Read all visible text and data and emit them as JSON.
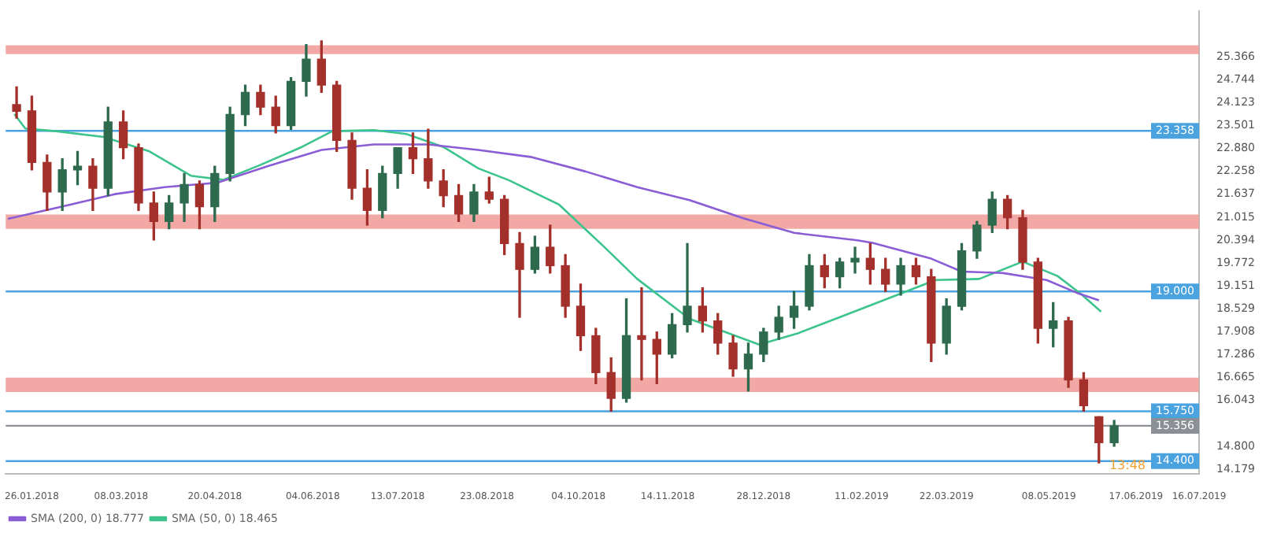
{
  "chart_data": {
    "type": "candlestick",
    "x": [
      "2018-01-19",
      "2018-01-26",
      "2018-02-02",
      "2018-02-09",
      "2018-02-16",
      "2018-02-23",
      "2018-03-02",
      "2018-03-09",
      "2018-03-16",
      "2018-03-23",
      "2018-03-30",
      "2018-04-06",
      "2018-04-13",
      "2018-04-20",
      "2018-04-27",
      "2018-05-04",
      "2018-05-11",
      "2018-05-18",
      "2018-05-25",
      "2018-06-01",
      "2018-06-08",
      "2018-06-15",
      "2018-06-22",
      "2018-06-29",
      "2018-07-06",
      "2018-07-13",
      "2018-07-20",
      "2018-07-27",
      "2018-08-03",
      "2018-08-10",
      "2018-08-17",
      "2018-08-24",
      "2018-08-31",
      "2018-09-07",
      "2018-09-14",
      "2018-09-21",
      "2018-09-28",
      "2018-10-05",
      "2018-10-12",
      "2018-10-19",
      "2018-10-26",
      "2018-11-02",
      "2018-11-09",
      "2018-11-16",
      "2018-11-23",
      "2018-11-30",
      "2018-12-07",
      "2018-12-14",
      "2018-12-21",
      "2018-12-28",
      "2019-01-04",
      "2019-01-11",
      "2019-01-18",
      "2019-01-25",
      "2019-02-01",
      "2019-02-08",
      "2019-02-15",
      "2019-02-22",
      "2019-03-01",
      "2019-03-08",
      "2019-03-15",
      "2019-03-22",
      "2019-03-29",
      "2019-04-05",
      "2019-04-12",
      "2019-04-19",
      "2019-04-26",
      "2019-05-03",
      "2019-05-10",
      "2019-05-17",
      "2019-05-24",
      "2019-05-31",
      "2019-06-07"
    ],
    "ohlc": [
      [
        24.07,
        24.55,
        23.7,
        23.89
      ],
      [
        23.9,
        24.3,
        22.3,
        22.5
      ],
      [
        22.5,
        22.7,
        21.2,
        21.7
      ],
      [
        21.7,
        22.6,
        21.2,
        22.3
      ],
      [
        22.3,
        22.8,
        21.9,
        22.4
      ],
      [
        22.4,
        22.6,
        21.2,
        21.8
      ],
      [
        21.8,
        24.0,
        21.6,
        23.6
      ],
      [
        23.6,
        23.9,
        22.6,
        22.9
      ],
      [
        22.9,
        23.0,
        21.2,
        21.4
      ],
      [
        21.4,
        21.7,
        20.4,
        20.9
      ],
      [
        20.9,
        21.6,
        20.7,
        21.4
      ],
      [
        21.4,
        22.2,
        20.9,
        21.9
      ],
      [
        21.9,
        22.0,
        20.7,
        21.3
      ],
      [
        21.3,
        22.4,
        20.9,
        22.2
      ],
      [
        22.2,
        24.0,
        22.0,
        23.8
      ],
      [
        23.8,
        24.6,
        23.5,
        24.4
      ],
      [
        24.4,
        24.6,
        23.8,
        24.0
      ],
      [
        24.0,
        24.3,
        23.3,
        23.5
      ],
      [
        23.5,
        24.8,
        23.4,
        24.7
      ],
      [
        24.7,
        25.7,
        24.3,
        25.3
      ],
      [
        25.3,
        25.8,
        24.4,
        24.6
      ],
      [
        24.6,
        24.7,
        22.8,
        23.1
      ],
      [
        23.1,
        23.3,
        21.5,
        21.8
      ],
      [
        21.8,
        22.3,
        20.8,
        21.2
      ],
      [
        21.2,
        22.4,
        21.0,
        22.2
      ],
      [
        22.2,
        22.9,
        21.8,
        22.9
      ],
      [
        22.9,
        23.3,
        22.2,
        22.6
      ],
      [
        22.6,
        23.4,
        21.8,
        22.0
      ],
      [
        22.0,
        22.3,
        21.3,
        21.6
      ],
      [
        21.6,
        21.9,
        20.9,
        21.1
      ],
      [
        21.1,
        21.9,
        20.9,
        21.7
      ],
      [
        21.7,
        22.1,
        21.4,
        21.5
      ],
      [
        21.5,
        21.6,
        20.0,
        20.3
      ],
      [
        20.3,
        20.6,
        18.3,
        19.6
      ],
      [
        19.6,
        20.5,
        19.5,
        20.2
      ],
      [
        20.2,
        20.8,
        19.5,
        19.7
      ],
      [
        19.7,
        20.0,
        18.3,
        18.6
      ],
      [
        18.6,
        19.2,
        17.4,
        17.8
      ],
      [
        17.8,
        18.0,
        16.5,
        16.8
      ],
      [
        16.8,
        17.2,
        15.75,
        16.1
      ],
      [
        16.1,
        18.8,
        16.0,
        17.8
      ],
      [
        17.8,
        19.1,
        16.6,
        17.7
      ],
      [
        17.7,
        17.9,
        16.5,
        17.3
      ],
      [
        17.3,
        18.4,
        17.2,
        18.1
      ],
      [
        18.1,
        20.3,
        17.9,
        18.6
      ],
      [
        18.6,
        19.1,
        17.9,
        18.2
      ],
      [
        18.2,
        18.4,
        17.3,
        17.6
      ],
      [
        17.6,
        17.8,
        16.7,
        16.9
      ],
      [
        16.9,
        17.6,
        16.3,
        17.3
      ],
      [
        17.3,
        18.0,
        17.1,
        17.9
      ],
      [
        17.9,
        18.6,
        17.7,
        18.3
      ],
      [
        18.3,
        19.0,
        18.0,
        18.6
      ],
      [
        18.6,
        20.0,
        18.5,
        19.7
      ],
      [
        19.7,
        20.0,
        19.1,
        19.4
      ],
      [
        19.4,
        19.9,
        19.1,
        19.8
      ],
      [
        19.8,
        20.2,
        19.5,
        19.9
      ],
      [
        19.9,
        20.3,
        19.2,
        19.6
      ],
      [
        19.6,
        19.9,
        19.0,
        19.2
      ],
      [
        19.2,
        19.9,
        18.9,
        19.7
      ],
      [
        19.7,
        19.9,
        19.2,
        19.4
      ],
      [
        19.4,
        19.6,
        17.1,
        17.6
      ],
      [
        17.6,
        18.8,
        17.3,
        18.6
      ],
      [
        18.6,
        20.3,
        18.5,
        20.1
      ],
      [
        20.1,
        20.9,
        19.9,
        20.8
      ],
      [
        20.8,
        21.7,
        20.6,
        21.5
      ],
      [
        21.5,
        21.6,
        20.7,
        21.0
      ],
      [
        21.0,
        21.2,
        19.6,
        19.8
      ],
      [
        19.8,
        19.9,
        17.6,
        18.0
      ],
      [
        18.0,
        18.7,
        17.5,
        18.2
      ],
      [
        18.2,
        18.3,
        16.4,
        16.6
      ],
      [
        16.6,
        16.8,
        15.75,
        15.9
      ],
      [
        15.6,
        15.6,
        14.35,
        14.9
      ],
      [
        14.9,
        15.5,
        14.8,
        15.356
      ]
    ],
    "colors": [
      "#a3302a",
      "#a3302a",
      "#a3302a",
      "#2e6b4e",
      "#2e6b4e",
      "#a3302a",
      "#2e6b4e",
      "#a3302a",
      "#a3302a",
      "#a3302a",
      "#2e6b4e",
      "#2e6b4e",
      "#a3302a",
      "#2e6b4e",
      "#2e6b4e",
      "#2e6b4e",
      "#a3302a",
      "#a3302a",
      "#2e6b4e",
      "#2e6b4e",
      "#a3302a",
      "#a3302a",
      "#a3302a",
      "#a3302a",
      "#2e6b4e",
      "#2e6b4e",
      "#a3302a",
      "#a3302a",
      "#a3302a",
      "#a3302a",
      "#2e6b4e",
      "#a3302a",
      "#a3302a",
      "#a3302a",
      "#2e6b4e",
      "#a3302a",
      "#a3302a",
      "#a3302a",
      "#a3302a",
      "#a3302a",
      "#2e6b4e",
      "#a3302a",
      "#a3302a",
      "#2e6b4e",
      "#2e6b4e",
      "#a3302a",
      "#a3302a",
      "#a3302a",
      "#2e6b4e",
      "#2e6b4e",
      "#2e6b4e",
      "#2e6b4e",
      "#2e6b4e",
      "#a3302a",
      "#2e6b4e",
      "#2e6b4e",
      "#a3302a",
      "#a3302a",
      "#2e6b4e",
      "#a3302a",
      "#a3302a",
      "#2e6b4e",
      "#2e6b4e",
      "#2e6b4e",
      "#2e6b4e",
      "#a3302a",
      "#a3302a",
      "#a3302a",
      "#2e6b4e",
      "#a3302a",
      "#a3302a",
      "#a3302a",
      "#2e6b4e"
    ],
    "series": [
      {
        "name": "SMA (200, 0) 18.777",
        "type": "line",
        "color": "#8a5cd6",
        "x": [
          "2018-01-15",
          "2018-02-08",
          "2018-03-05",
          "2018-03-28",
          "2018-04-21",
          "2018-05-15",
          "2018-06-08",
          "2018-07-02",
          "2018-07-27",
          "2018-08-19",
          "2018-09-12",
          "2018-10-07",
          "2018-10-31",
          "2018-11-24",
          "2018-12-19",
          "2019-01-11",
          "2019-02-09",
          "2019-02-16",
          "2019-03-15",
          "2019-03-29",
          "2019-04-17",
          "2019-05-07",
          "2019-05-21",
          "2019-05-31"
        ],
        "values": [
          20.97,
          21.29,
          21.64,
          21.83,
          21.95,
          22.41,
          22.84,
          22.99,
          22.99,
          22.84,
          22.65,
          22.26,
          21.83,
          21.48,
          20.98,
          20.59,
          20.39,
          20.32,
          19.89,
          19.54,
          19.5,
          19.31,
          18.96,
          18.76
        ]
      },
      {
        "name": "SMA (50, 0) 18.465",
        "type": "line",
        "color": "#3cc48c",
        "x": [
          "2018-01-18",
          "2018-01-23",
          "2018-02-06",
          "2018-02-28",
          "2018-03-21",
          "2018-04-09",
          "2018-04-24",
          "2018-05-10",
          "2018-05-30",
          "2018-06-13",
          "2018-07-02",
          "2018-07-17",
          "2018-08-03",
          "2018-08-19",
          "2018-09-02",
          "2018-09-25",
          "2018-10-07",
          "2018-10-16",
          "2018-10-31",
          "2018-11-24",
          "2018-12-26",
          "2019-01-13",
          "2019-02-04",
          "2019-02-28",
          "2019-03-17",
          "2019-04-06",
          "2019-04-26",
          "2019-05-12",
          "2019-05-23",
          "2019-06-01"
        ],
        "values": [
          23.81,
          23.42,
          23.35,
          23.19,
          22.8,
          22.14,
          22.03,
          22.41,
          22.92,
          23.35,
          23.38,
          23.27,
          22.92,
          22.34,
          22.02,
          21.36,
          20.7,
          20.2,
          19.34,
          18.26,
          17.56,
          17.87,
          18.37,
          18.92,
          19.31,
          19.34,
          19.81,
          19.42,
          18.92,
          18.45
        ]
      }
    ],
    "xlim": [
      "2018-01-14",
      "2019-07-16"
    ],
    "xticks": [
      {
        "value": "2018-01-26",
        "label": "26.01.2018"
      },
      {
        "value": "2018-03-08",
        "label": "08.03.2018"
      },
      {
        "value": "2018-04-20",
        "label": "20.04.2018"
      },
      {
        "value": "2018-06-04",
        "label": "04.06.2018"
      },
      {
        "value": "2018-07-13",
        "label": "13.07.2018"
      },
      {
        "value": "2018-08-23",
        "label": "23.08.2018"
      },
      {
        "value": "2018-10-04",
        "label": "04.10.2018"
      },
      {
        "value": "2018-11-14",
        "label": "14.11.2018"
      },
      {
        "value": "2018-12-28",
        "label": "28.12.2018"
      },
      {
        "value": "2019-02-11",
        "label": "11.02.2019"
      },
      {
        "value": "2019-03-22",
        "label": "22.03.2019"
      },
      {
        "value": "2019-05-08",
        "label": "08.05.2019"
      },
      {
        "value": "2019-06-17",
        "label": "17.06.2019"
      },
      {
        "value": "2019-07-16",
        "label": "16.07.2019"
      }
    ],
    "ylim": [
      14.06,
      26.6
    ],
    "yticks": [
      {
        "value": 14.179,
        "label": "14.179"
      },
      {
        "value": 14.8,
        "label": "14.800"
      },
      {
        "value": 16.043,
        "label": "16.043"
      },
      {
        "value": 16.665,
        "label": "16.665"
      },
      {
        "value": 17.286,
        "label": "17.286"
      },
      {
        "value": 17.908,
        "label": "17.908"
      },
      {
        "value": 18.529,
        "label": "18.529"
      },
      {
        "value": 19.151,
        "label": "19.151"
      },
      {
        "value": 19.772,
        "label": "19.772"
      },
      {
        "value": 20.394,
        "label": "20.394"
      },
      {
        "value": 21.015,
        "label": "21.015"
      },
      {
        "value": 21.637,
        "label": "21.637"
      },
      {
        "value": 22.258,
        "label": "22.258"
      },
      {
        "value": 22.88,
        "label": "22.880"
      },
      {
        "value": 23.501,
        "label": "23.501"
      },
      {
        "value": 24.123,
        "label": "24.123"
      },
      {
        "value": 24.744,
        "label": "24.744"
      },
      {
        "value": 25.366,
        "label": "25.366"
      }
    ],
    "ref_lines": [
      {
        "axis": "y",
        "value": 23.358,
        "label": "23.358",
        "color": "#4aa3df"
      },
      {
        "axis": "y",
        "value": 19.0,
        "label": "19.000",
        "color": "#4aa3df"
      },
      {
        "axis": "y",
        "value": 15.75,
        "label": "15.750",
        "color": "#4aa3df"
      },
      {
        "axis": "y",
        "value": 14.4,
        "label": "14.400",
        "color": "#4aa3df"
      },
      {
        "axis": "y",
        "value": 15.356,
        "label": "15.356",
        "color": "#8a9096"
      }
    ],
    "bands": [
      {
        "axis": "y",
        "from": 25.44,
        "to": 25.68,
        "color": "#f09a96"
      },
      {
        "axis": "y",
        "from": 20.7,
        "to": 21.09,
        "color": "#f09a96"
      },
      {
        "axis": "y",
        "from": 16.27,
        "to": 16.66,
        "color": "#f09a96"
      }
    ],
    "annotations": [
      "13:48"
    ],
    "legend": "bottom left",
    "marker": "none"
  }
}
